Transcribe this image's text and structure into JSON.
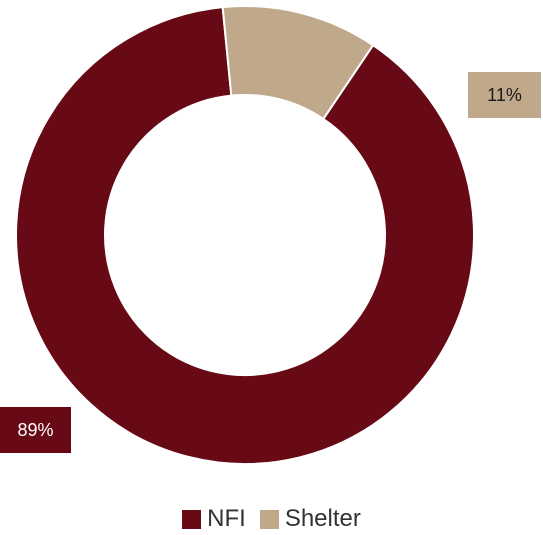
{
  "chart_data": {
    "type": "pie",
    "variant": "donut",
    "categories": [
      "NFI",
      "Shelter"
    ],
    "values": [
      89,
      11
    ],
    "data_labels": [
      "89%",
      "11%"
    ],
    "colors": [
      "#670a15",
      "#bfa98a"
    ],
    "legend_position": "bottom",
    "title": ""
  },
  "legend": {
    "items": [
      {
        "label": "NFI",
        "color": "#670a15"
      },
      {
        "label": "Shelter",
        "color": "#bfa98a"
      }
    ]
  }
}
